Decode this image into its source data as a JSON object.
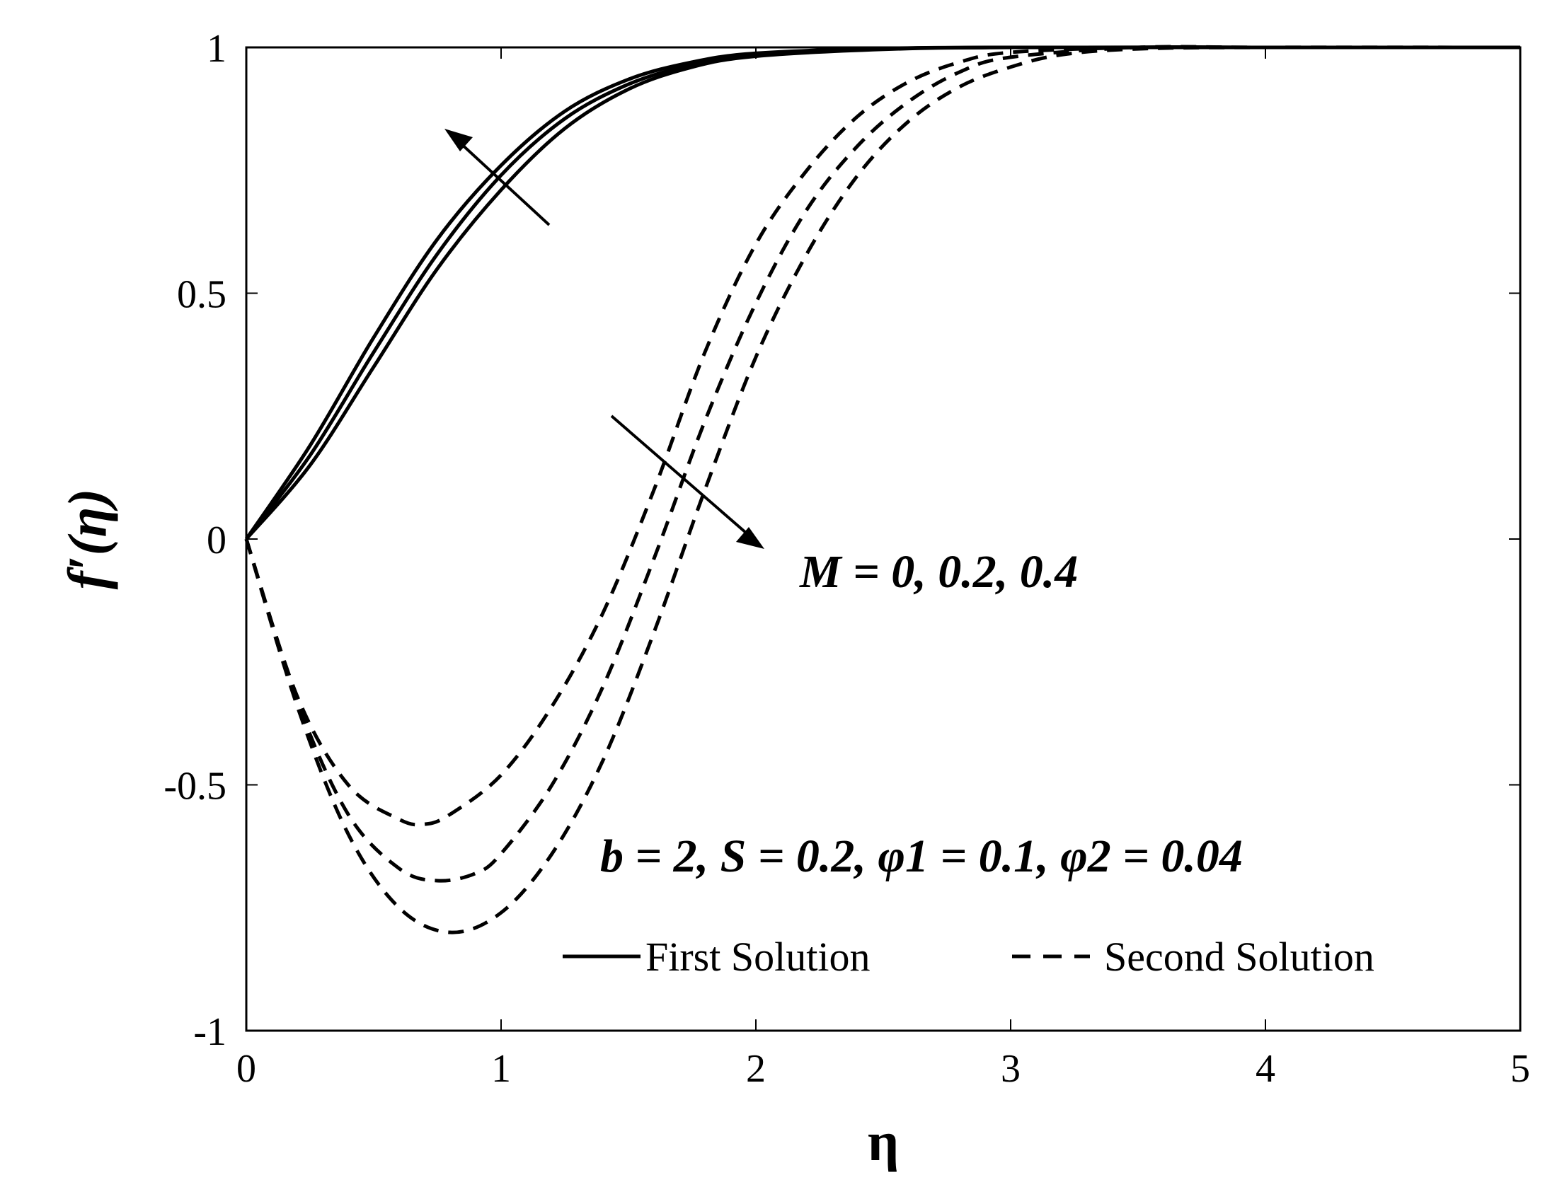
{
  "chart_data": {
    "type": "line",
    "xlabel": "η",
    "ylabel": "f′(η)",
    "xlim": [
      0,
      5
    ],
    "ylim": [
      -1,
      1
    ],
    "xticks": [
      "0",
      "1",
      "2",
      "3",
      "4",
      "5"
    ],
    "yticks": [
      "-1",
      "-0.5",
      "0",
      "0.5",
      "1"
    ],
    "legend": {
      "placement": "bottom-right",
      "solid_label": "First Solution",
      "dashed_label": "Second Solution"
    },
    "annotations": {
      "parameter_label": "M = 0, 0.2, 0.4",
      "fixed_params_label": "b = 2, S = 0.2, φ1 = 0.1, φ2 = 0.04"
    },
    "series": [
      {
        "group": "First Solution",
        "style": "solid",
        "x": [
          0,
          0.25,
          0.5,
          0.75,
          1.0,
          1.25,
          1.5,
          1.75,
          2.0,
          2.5,
          3.0,
          4.0,
          5.0
        ],
        "values": [
          0,
          0.19,
          0.41,
          0.61,
          0.76,
          0.87,
          0.935,
          0.97,
          0.988,
          0.998,
          1.0,
          1.0,
          1.0
        ]
      },
      {
        "group": "First Solution",
        "style": "solid",
        "x": [
          0,
          0.25,
          0.5,
          0.75,
          1.0,
          1.25,
          1.5,
          1.75,
          2.0,
          2.5,
          3.0,
          4.0,
          5.0
        ],
        "values": [
          0,
          0.17,
          0.38,
          0.58,
          0.74,
          0.855,
          0.925,
          0.965,
          0.985,
          0.997,
          1.0,
          1.0,
          1.0
        ]
      },
      {
        "group": "First Solution",
        "style": "solid",
        "x": [
          0,
          0.25,
          0.5,
          0.75,
          1.0,
          1.25,
          1.5,
          1.75,
          2.0,
          2.5,
          3.0,
          4.0,
          5.0
        ],
        "values": [
          0,
          0.15,
          0.35,
          0.55,
          0.71,
          0.835,
          0.915,
          0.96,
          0.982,
          0.996,
          1.0,
          1.0,
          1.0
        ]
      },
      {
        "group": "Second Solution",
        "style": "dashed",
        "x": [
          0,
          0.2,
          0.4,
          0.6,
          0.7,
          0.8,
          1.0,
          1.2,
          1.4,
          1.6,
          1.8,
          2.0,
          2.2,
          2.4,
          2.6,
          2.8,
          3.0,
          3.5,
          4.0,
          5.0
        ],
        "values": [
          0,
          -0.32,
          -0.5,
          -0.57,
          -0.58,
          -0.56,
          -0.48,
          -0.34,
          -0.15,
          0.1,
          0.38,
          0.6,
          0.75,
          0.86,
          0.93,
          0.97,
          0.99,
          1.0,
          1.0,
          1.0
        ]
      },
      {
        "group": "Second Solution",
        "style": "dashed",
        "x": [
          0,
          0.2,
          0.4,
          0.6,
          0.75,
          0.9,
          1.0,
          1.2,
          1.4,
          1.6,
          1.8,
          2.0,
          2.2,
          2.4,
          2.6,
          2.8,
          3.0,
          3.5,
          4.0,
          5.0
        ],
        "values": [
          0,
          -0.33,
          -0.56,
          -0.67,
          -0.695,
          -0.68,
          -0.64,
          -0.5,
          -0.3,
          -0.04,
          0.24,
          0.48,
          0.67,
          0.8,
          0.89,
          0.95,
          0.98,
          1.0,
          1.0,
          1.0
        ]
      },
      {
        "group": "Second Solution",
        "style": "dashed",
        "x": [
          0,
          0.2,
          0.4,
          0.6,
          0.8,
          1.0,
          1.2,
          1.4,
          1.6,
          1.8,
          2.0,
          2.2,
          2.4,
          2.6,
          2.8,
          3.0,
          3.2,
          3.5,
          4.0,
          5.0
        ],
        "values": [
          0,
          -0.34,
          -0.6,
          -0.75,
          -0.8,
          -0.76,
          -0.64,
          -0.45,
          -0.19,
          0.1,
          0.37,
          0.58,
          0.74,
          0.85,
          0.92,
          0.96,
          0.985,
          0.997,
          1.0,
          1.0
        ]
      }
    ]
  }
}
